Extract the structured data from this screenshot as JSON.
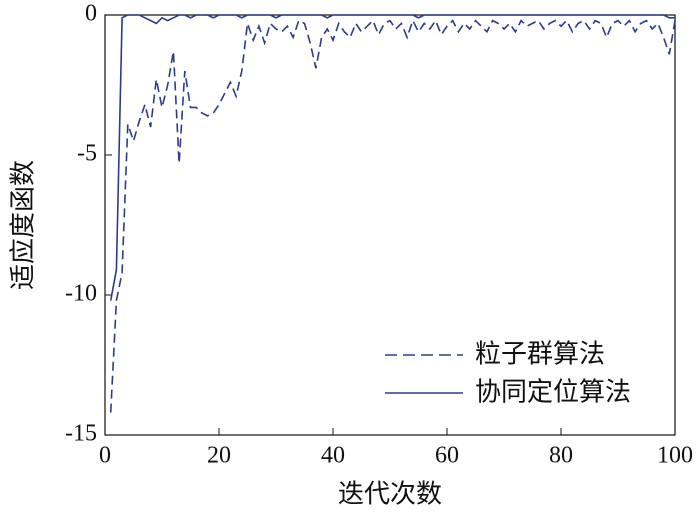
{
  "chart_data": {
    "type": "line",
    "xlabel": "迭代次数",
    "ylabel": "适应度函数",
    "x": [
      1,
      2,
      3,
      4,
      5,
      6,
      7,
      8,
      9,
      10,
      11,
      12,
      13,
      14,
      15,
      16,
      17,
      18,
      19,
      20,
      21,
      22,
      23,
      24,
      25,
      26,
      27,
      28,
      29,
      30,
      31,
      32,
      33,
      34,
      35,
      36,
      37,
      38,
      39,
      40,
      41,
      42,
      43,
      44,
      45,
      46,
      47,
      48,
      49,
      50,
      51,
      52,
      53,
      54,
      55,
      56,
      57,
      58,
      59,
      60,
      61,
      62,
      63,
      64,
      65,
      66,
      67,
      68,
      69,
      70,
      71,
      72,
      73,
      74,
      75,
      76,
      77,
      78,
      79,
      80,
      81,
      82,
      83,
      84,
      85,
      86,
      87,
      88,
      89,
      90,
      91,
      92,
      93,
      94,
      95,
      96,
      97,
      98,
      99,
      100
    ],
    "series": [
      {
        "name": "粒子群算法",
        "color": "#2e3b8c",
        "style": "dashed",
        "values": [
          -14.2,
          -10.2,
          -9.2,
          -3.9,
          -4.5,
          -3.8,
          -3.2,
          -4.0,
          -2.3,
          -3.3,
          -2.5,
          -1.3,
          -5.3,
          -2.0,
          -3.3,
          -3.3,
          -3.5,
          -3.6,
          -3.5,
          -3.2,
          -2.8,
          -2.4,
          -2.9,
          -2.0,
          -0.3,
          -0.9,
          -0.4,
          -1.0,
          -0.3,
          -0.5,
          -0.6,
          -0.4,
          -0.8,
          -0.2,
          -0.3,
          -1.0,
          -1.9,
          -0.8,
          -0.5,
          -0.9,
          -0.3,
          -0.6,
          -0.8,
          -0.3,
          -0.6,
          -0.4,
          -0.2,
          -0.7,
          -0.3,
          -0.2,
          -0.5,
          -0.3,
          -0.8,
          -0.2,
          -0.6,
          -0.3,
          -0.5,
          -0.2,
          -0.7,
          -0.4,
          -0.2,
          -0.6,
          -0.3,
          -0.5,
          -0.2,
          -0.4,
          -0.6,
          -0.2,
          -0.3,
          -0.5,
          -0.3,
          -0.6,
          -0.2,
          -0.4,
          -0.3,
          -0.2,
          -0.5,
          -0.3,
          -0.2,
          -0.4,
          -0.2,
          -0.6,
          -0.3,
          -0.2,
          -0.5,
          -0.2,
          -0.3,
          -0.8,
          -0.3,
          -0.2,
          -0.4,
          -0.2,
          -0.6,
          -0.3,
          -0.2,
          -0.5,
          -0.3,
          -0.8,
          -1.4,
          -0.2
        ]
      },
      {
        "name": "协同定位算法",
        "color": "#2e3b8c",
        "style": "solid",
        "values": [
          -10.2,
          -9.1,
          -0.1,
          0,
          0,
          0,
          -0.1,
          -0.2,
          -0.3,
          -0.1,
          -0.2,
          -0.1,
          0,
          0,
          -0.1,
          0,
          0,
          0,
          -0.1,
          0,
          0,
          0,
          0,
          -0.1,
          0,
          0,
          0,
          0,
          0,
          -0.1,
          0,
          0,
          0,
          0,
          0,
          0,
          0,
          0,
          -0.1,
          0,
          0,
          0,
          0,
          0,
          0,
          0,
          0,
          0,
          0,
          0,
          0,
          0,
          0,
          0,
          -0.1,
          0,
          0,
          0,
          0,
          0,
          0,
          0,
          0,
          0,
          0,
          0,
          0,
          0,
          0,
          0,
          0,
          0,
          0,
          0,
          0,
          0,
          0,
          0,
          0,
          0,
          0,
          0,
          0,
          0,
          0,
          0,
          0,
          0,
          0,
          0,
          0,
          0,
          0,
          0,
          0,
          0,
          0,
          0,
          -0.1,
          -0.1
        ]
      }
    ],
    "xlim": [
      0,
      100
    ],
    "xticks": [
      0,
      20,
      40,
      60,
      80,
      100
    ],
    "ylim": [
      -15,
      0
    ],
    "yticks": [
      -15,
      -10,
      -5,
      0
    ],
    "legend": "lower-right"
  }
}
